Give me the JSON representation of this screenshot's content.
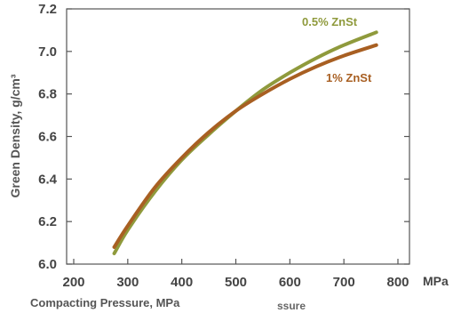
{
  "chart_data": {
    "type": "line",
    "title": "",
    "xlabel": "Compacting Pressure, MPa",
    "xunit": "MPa",
    "ylabel": "Green Density, g/cm³",
    "fragment_text": "ssure",
    "xlim": [
      200,
      800
    ],
    "ylim": [
      6.0,
      7.2
    ],
    "xticks": [
      200,
      300,
      400,
      500,
      600,
      700,
      800
    ],
    "yticks": [
      "6.0",
      "6.2",
      "6.4",
      "6.6",
      "6.8",
      "7.0",
      "7.2"
    ],
    "grid": false,
    "series": [
      {
        "name": "0.5% ZnSt",
        "color": "#8f9a3c",
        "x": [
          275,
          300,
          350,
          400,
          450,
          500,
          550,
          600,
          650,
          700,
          760
        ],
        "y": [
          6.05,
          6.16,
          6.34,
          6.49,
          6.61,
          6.72,
          6.82,
          6.9,
          6.97,
          7.03,
          7.09
        ]
      },
      {
        "name": "1% ZnSt",
        "color": "#a85f22",
        "x": [
          275,
          300,
          350,
          400,
          450,
          500,
          550,
          600,
          650,
          700,
          760
        ],
        "y": [
          6.08,
          6.18,
          6.36,
          6.5,
          6.62,
          6.72,
          6.8,
          6.87,
          6.93,
          6.98,
          7.03
        ]
      }
    ]
  }
}
